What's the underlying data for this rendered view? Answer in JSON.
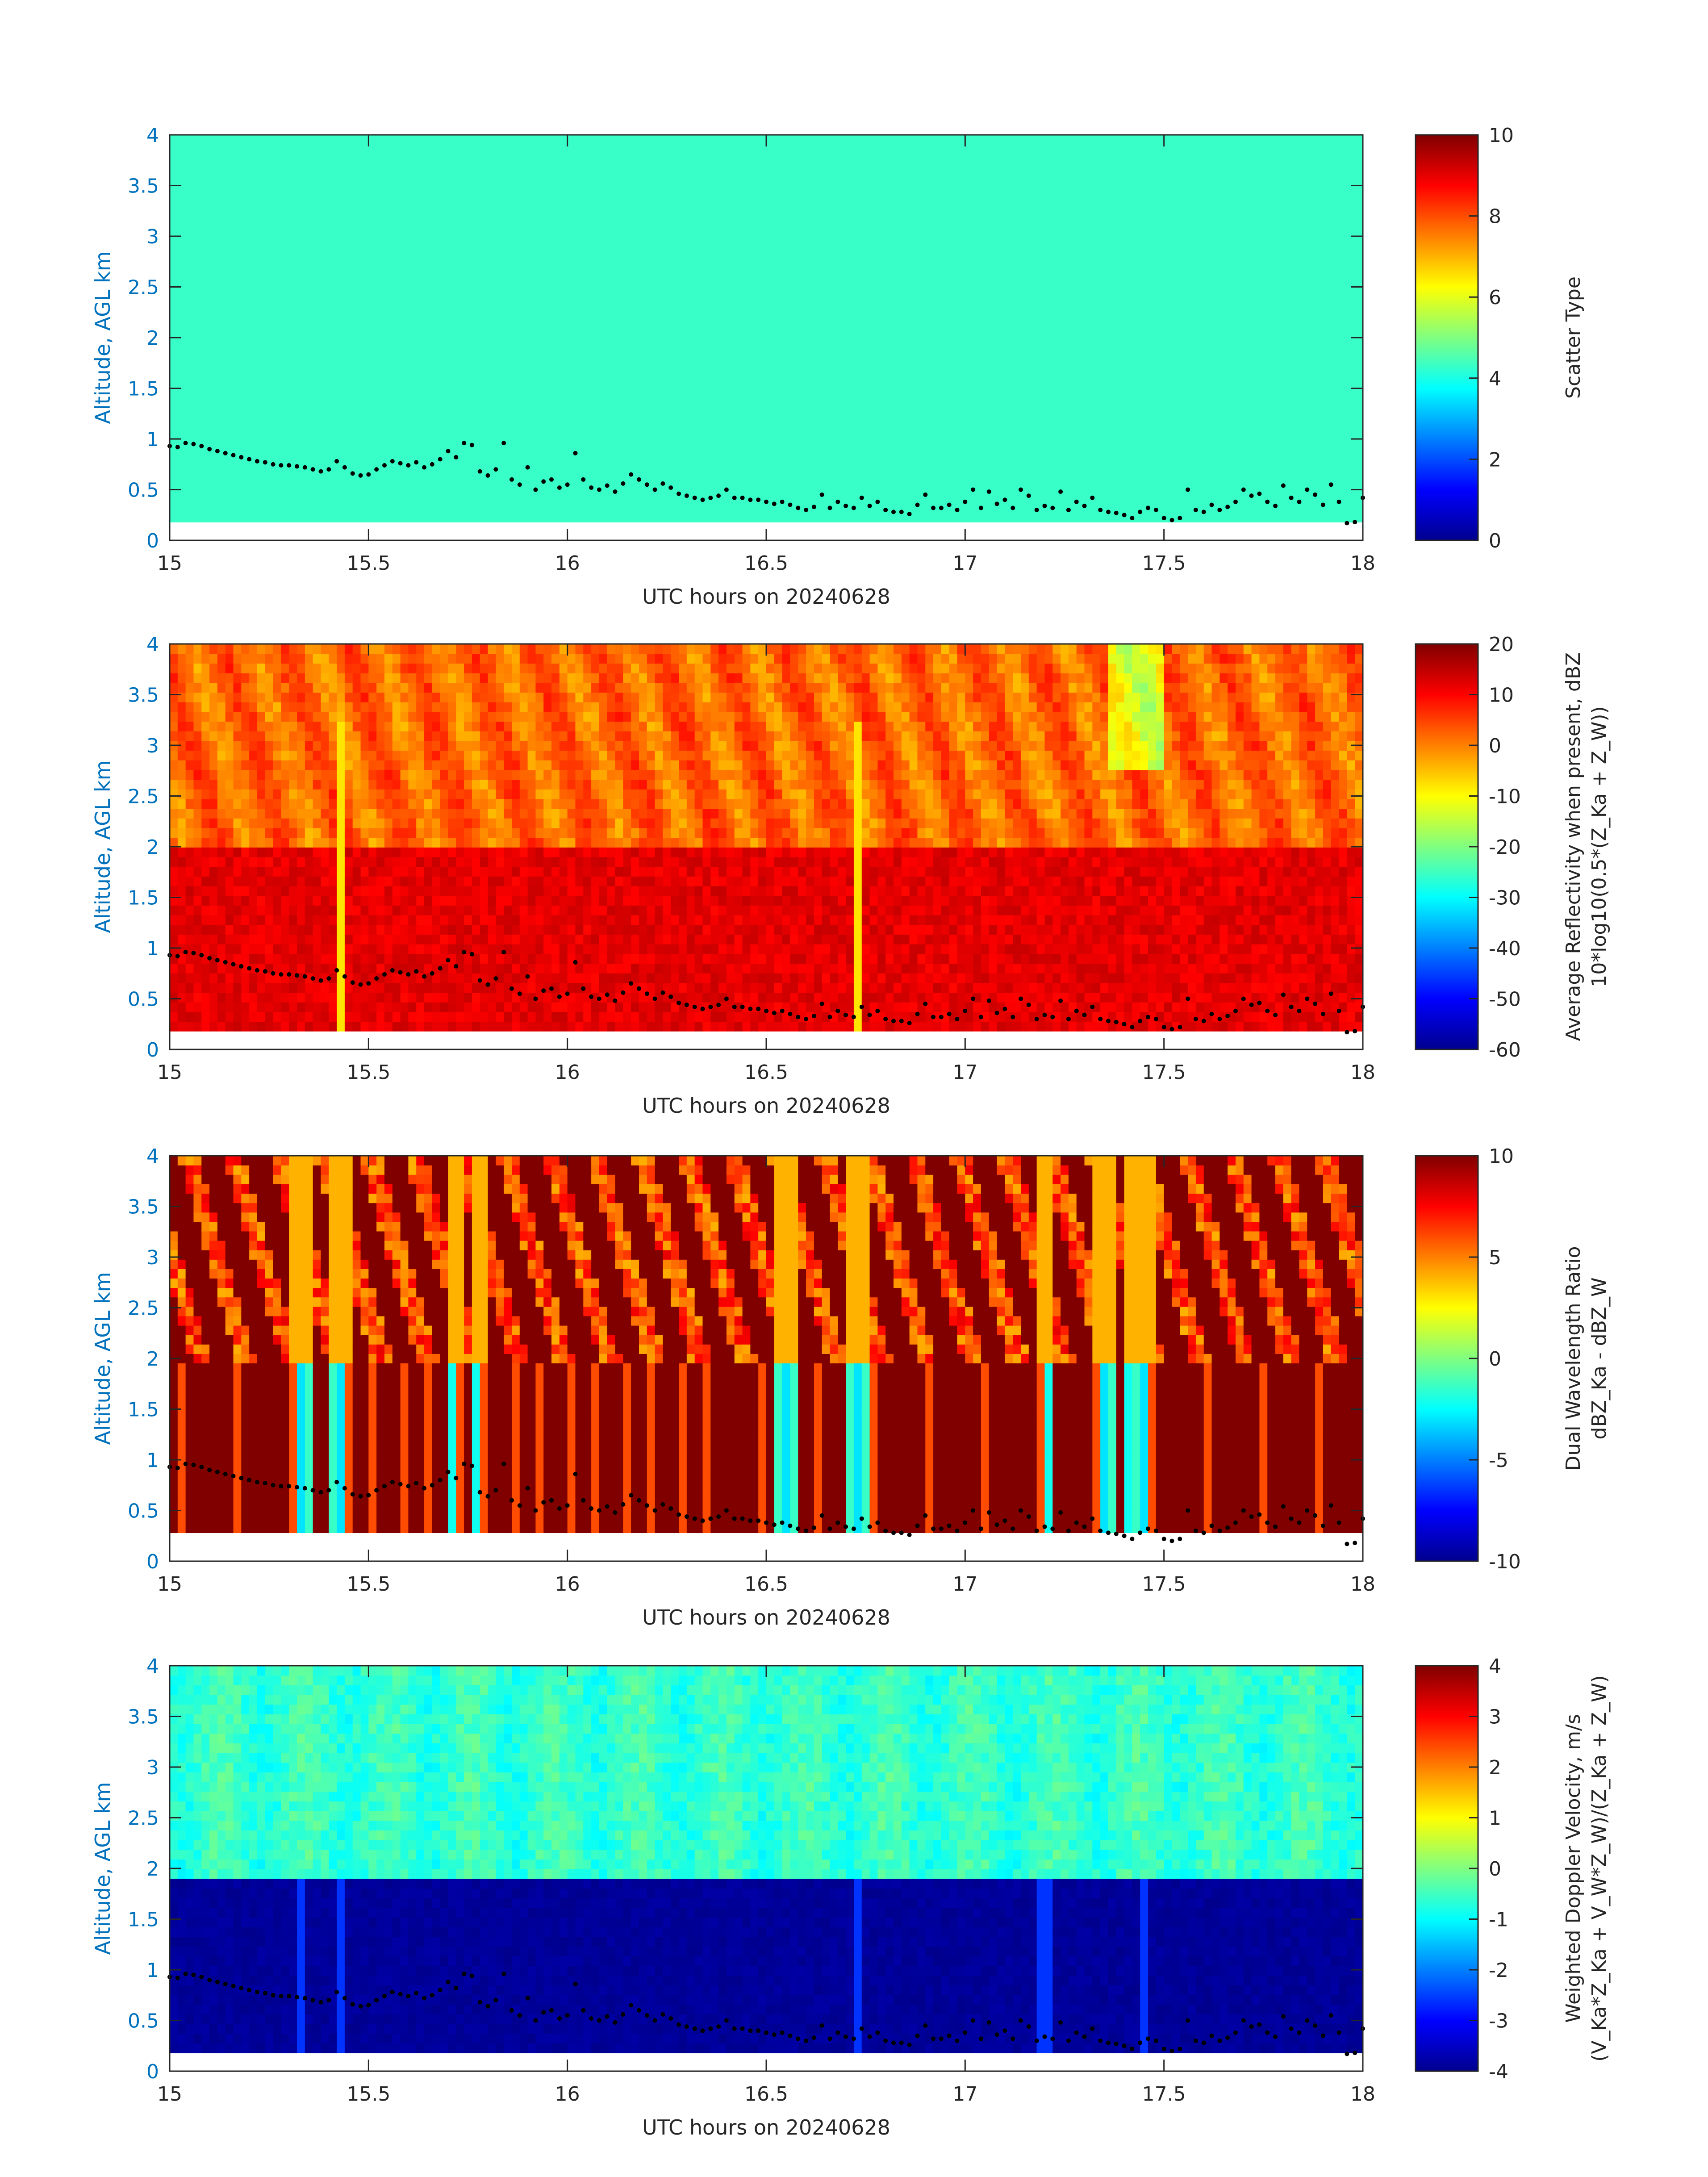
{
  "figure": {
    "xlabel": "UTC hours on 20240628",
    "ylabel": "Altitude, AGL km"
  },
  "chart_data": [
    {
      "type": "heatmap",
      "colorbar_label": "Scatter Type",
      "colorbar_label2": "",
      "colorbar_ticks": [
        "0",
        "2",
        "4",
        "6",
        "8",
        "10"
      ],
      "colorbar_range": [
        0,
        10
      ],
      "xlabel": "UTC hours on 20240628",
      "ylabel": "Altitude, AGL km",
      "xlim": [
        15,
        18
      ],
      "ylim": [
        0,
        4
      ],
      "x_ticks": [
        "15",
        "15.5",
        "16",
        "16.5",
        "17",
        "17.5",
        "18"
      ],
      "y_ticks": [
        "0",
        "0.5",
        "1",
        "1.5",
        "2",
        "2.5",
        "3",
        "3.5",
        "4"
      ],
      "fill_value": 4.3,
      "data_bottom_km": 0.18
    },
    {
      "type": "heatmap",
      "colorbar_label": "Average Reflectivity when present, dBZ",
      "colorbar_label2": "10*log10(0.5*(Z_Ka + Z_W))",
      "colorbar_ticks": [
        "-60",
        "-50",
        "-40",
        "-30",
        "-20",
        "-10",
        "0",
        "10",
        "20"
      ],
      "colorbar_range": [
        -60,
        20
      ],
      "xlabel": "UTC hours on 20240628",
      "ylabel": "Altitude, AGL km",
      "xlim": [
        15,
        18
      ],
      "ylim": [
        0,
        4
      ],
      "x_ticks": [
        "15",
        "15.5",
        "16",
        "16.5",
        "17",
        "17.5",
        "18"
      ],
      "y_ticks": [
        "0",
        "0.5",
        "1",
        "1.5",
        "2",
        "2.5",
        "3",
        "3.5",
        "4"
      ],
      "layer_boundary_km": 2.0,
      "above_layer_typical_dbz": 2,
      "below_layer_typical_dbz": 12,
      "streak_times": [
        15.43,
        16.73
      ],
      "data_bottom_km": 0.18
    },
    {
      "type": "heatmap",
      "colorbar_label": "Dual Wavelength Ratio",
      "colorbar_label2": "dBZ_Ka - dBZ_W",
      "colorbar_ticks": [
        "-10",
        "-5",
        "0",
        "5",
        "10"
      ],
      "colorbar_range": [
        -10,
        10
      ],
      "xlabel": "UTC hours on 20240628",
      "ylabel": "Altitude, AGL km",
      "xlim": [
        15,
        18
      ],
      "ylim": [
        0,
        4
      ],
      "x_ticks": [
        "15",
        "15.5",
        "16",
        "16.5",
        "17",
        "17.5",
        "18"
      ],
      "y_ticks": [
        "0",
        "0.5",
        "1",
        "1.5",
        "2",
        "2.5",
        "3",
        "3.5",
        "4"
      ],
      "layer_boundary_km": 2.0,
      "streak_times": [
        15.33,
        15.43,
        15.72,
        15.78,
        16.55,
        16.73,
        17.2,
        17.35,
        17.42,
        17.45
      ],
      "data_bottom_km": 0.28
    },
    {
      "type": "heatmap",
      "colorbar_label": "Weighted Doppler Velocity, m/s",
      "colorbar_label2": "(V_Ka*Z_Ka + V_W*Z_W)/(Z_Ka + Z_W)",
      "colorbar_ticks": [
        "-4",
        "-3",
        "-2",
        "-1",
        "0",
        "1",
        "2",
        "3",
        "4"
      ],
      "colorbar_range": [
        -4,
        4
      ],
      "xlabel": "UTC hours on 20240628",
      "ylabel": "Altitude, AGL km",
      "xlim": [
        15,
        18
      ],
      "ylim": [
        0,
        4
      ],
      "x_ticks": [
        "15",
        "15.5",
        "16",
        "16.5",
        "17",
        "17.5",
        "18"
      ],
      "y_ticks": [
        "0",
        "0.5",
        "1",
        "1.5",
        "2",
        "2.5",
        "3",
        "3.5",
        "4"
      ],
      "layer_boundary_km": 1.92,
      "above_layer_typical_ms": -0.6,
      "below_layer_typical_ms": -3.8,
      "streak_times": [
        15.33,
        15.43,
        16.73,
        17.2,
        17.45
      ],
      "data_bottom_km": 0.18
    }
  ],
  "cloud_base_points": {
    "series_name": "",
    "marker_color": "#000000",
    "t": [
      15.0,
      15.02,
      15.04,
      15.06,
      15.08,
      15.1,
      15.12,
      15.14,
      15.16,
      15.18,
      15.2,
      15.22,
      15.24,
      15.26,
      15.28,
      15.3,
      15.32,
      15.34,
      15.36,
      15.38,
      15.4,
      15.42,
      15.44,
      15.46,
      15.48,
      15.5,
      15.52,
      15.54,
      15.56,
      15.58,
      15.6,
      15.62,
      15.64,
      15.66,
      15.68,
      15.7,
      15.72,
      15.74,
      15.76,
      15.78,
      15.8,
      15.82,
      15.84,
      15.86,
      15.88,
      15.9,
      15.92,
      15.94,
      15.96,
      15.98,
      16.0,
      16.02,
      16.04,
      16.06,
      16.08,
      16.1,
      16.12,
      16.14,
      16.16,
      16.18,
      16.2,
      16.22,
      16.24,
      16.26,
      16.28,
      16.3,
      16.32,
      16.34,
      16.36,
      16.38,
      16.4,
      16.42,
      16.44,
      16.46,
      16.48,
      16.5,
      16.52,
      16.54,
      16.56,
      16.58,
      16.6,
      16.62,
      16.64,
      16.66,
      16.68,
      16.7,
      16.72,
      16.74,
      16.76,
      16.78,
      16.8,
      16.82,
      16.84,
      16.86,
      16.88,
      16.9,
      16.92,
      16.94,
      16.96,
      16.98,
      17.0,
      17.02,
      17.04,
      17.06,
      17.08,
      17.1,
      17.12,
      17.14,
      17.16,
      17.18,
      17.2,
      17.22,
      17.24,
      17.26,
      17.28,
      17.3,
      17.32,
      17.34,
      17.36,
      17.38,
      17.4,
      17.42,
      17.44,
      17.46,
      17.48,
      17.5,
      17.52,
      17.54,
      17.56,
      17.58,
      17.6,
      17.62,
      17.64,
      17.66,
      17.68,
      17.7,
      17.72,
      17.74,
      17.76,
      17.78,
      17.8,
      17.82,
      17.84,
      17.86,
      17.88,
      17.9,
      17.92,
      17.94,
      17.96,
      17.98,
      18.0
    ],
    "alt_km": [
      0.93,
      0.92,
      0.96,
      0.95,
      0.93,
      0.9,
      0.88,
      0.86,
      0.84,
      0.82,
      0.8,
      0.78,
      0.77,
      0.75,
      0.74,
      0.74,
      0.73,
      0.72,
      0.7,
      0.68,
      0.7,
      0.78,
      0.72,
      0.66,
      0.64,
      0.65,
      0.7,
      0.74,
      0.78,
      0.76,
      0.74,
      0.77,
      0.72,
      0.75,
      0.8,
      0.88,
      0.82,
      0.96,
      0.94,
      0.68,
      0.64,
      0.7,
      0.96,
      0.6,
      0.55,
      0.72,
      0.5,
      0.58,
      0.6,
      0.52,
      0.55,
      0.86,
      0.6,
      0.52,
      0.5,
      0.54,
      0.48,
      0.56,
      0.65,
      0.6,
      0.55,
      0.5,
      0.56,
      0.52,
      0.46,
      0.44,
      0.42,
      0.4,
      0.42,
      0.44,
      0.5,
      0.42,
      0.42,
      0.4,
      0.4,
      0.38,
      0.36,
      0.38,
      0.35,
      0.32,
      0.3,
      0.33,
      0.45,
      0.32,
      0.38,
      0.34,
      0.32,
      0.42,
      0.34,
      0.38,
      0.3,
      0.28,
      0.28,
      0.26,
      0.35,
      0.45,
      0.32,
      0.32,
      0.35,
      0.3,
      0.38,
      0.5,
      0.32,
      0.48,
      0.36,
      0.4,
      0.32,
      0.5,
      0.44,
      0.3,
      0.34,
      0.32,
      0.48,
      0.3,
      0.38,
      0.34,
      0.42,
      0.3,
      0.28,
      0.27,
      0.25,
      0.22,
      0.28,
      0.32,
      0.3,
      0.22,
      0.2,
      0.22,
      0.5,
      0.3,
      0.28,
      0.35,
      0.3,
      0.33,
      0.38,
      0.5,
      0.44,
      0.46,
      0.38,
      0.34,
      0.54,
      0.42,
      0.38,
      0.5,
      0.45,
      0.35,
      0.55,
      0.38,
      0.17,
      0.18,
      0.42
    ]
  }
}
